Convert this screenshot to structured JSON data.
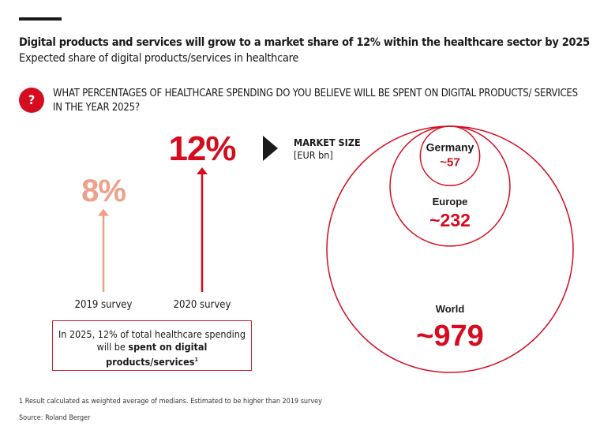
{
  "header": {
    "title": "Digital products and services will grow to a market share of 12% within the healthcare sector by 2025",
    "subtitle": "Expected share of digital products/services in healthcare"
  },
  "question": {
    "icon": "question-mark-icon",
    "icon_text": "?",
    "text": "WHAT PERCENTAGES OF HEALTHCARE SPENDING DO YOU BELIEVE WILL BE SPENT ON DIGITAL PRODUCTS/ SERVICES IN THE YEAR 2025?"
  },
  "note": {
    "text_plain": "In 2025, 12% of total healthcare spending will be ",
    "text_bold": "spent on digital products/services",
    "sup": "1"
  },
  "market": {
    "title": "MARKET SIZE",
    "unit": "[EUR bn]"
  },
  "footnote": "1  Result calculated as weighted average of medians. Estimated to be higher than 2019 survey",
  "source": "Source: Roland Berger",
  "colors": {
    "accent": "#d50c1f",
    "light": "#eda08a",
    "text": "#1a1a1a"
  },
  "chart_data": [
    {
      "type": "bar",
      "categories": [
        "2019 survey",
        "2020 survey"
      ],
      "values": [
        8,
        12
      ],
      "labels": [
        "8%",
        "12%"
      ],
      "unit": "%"
    },
    {
      "type": "bubble",
      "unit": "EUR bn",
      "items": [
        {
          "name": "Germany",
          "value": 57,
          "label": "~57"
        },
        {
          "name": "Europe",
          "value": 232,
          "label": "~232"
        },
        {
          "name": "World",
          "value": 979,
          "label": "~979"
        }
      ]
    }
  ]
}
